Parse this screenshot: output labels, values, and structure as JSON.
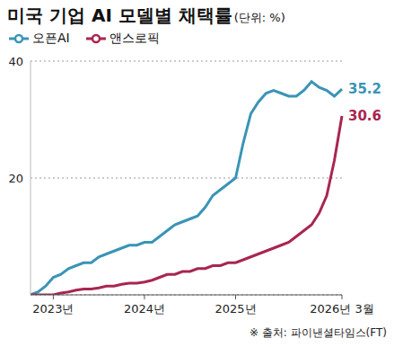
{
  "chart_data": {
    "type": "line",
    "title": "미국 기업 AI 모델별 채택률",
    "subtitle": "(단위: %)",
    "categories": [
      null,
      null,
      null,
      "2023년",
      null,
      null,
      null,
      null,
      null,
      null,
      null,
      null,
      null,
      null,
      null,
      "2024년",
      null,
      null,
      null,
      null,
      null,
      null,
      null,
      null,
      null,
      null,
      null,
      "2025년",
      null,
      null,
      null,
      null,
      null,
      null,
      null,
      null,
      null,
      null,
      null,
      null,
      null,
      "2026년 3월"
    ],
    "series": [
      {
        "name": "오픈AI",
        "color": "#3a94b5",
        "values": [
          0,
          0.5,
          1.5,
          3,
          3.5,
          4.5,
          5,
          5.5,
          5.5,
          6.5,
          7,
          7.5,
          8,
          8.5,
          8.5,
          9,
          9,
          10,
          11,
          12,
          12.5,
          13,
          13.5,
          15,
          17,
          18,
          19,
          20,
          26,
          31,
          33,
          34.5,
          35,
          34.5,
          34,
          34,
          35,
          36.5,
          35.5,
          35,
          34,
          35.2
        ]
      },
      {
        "name": "앤스로픽",
        "color": "#a8264f",
        "values": [
          0,
          0,
          0,
          0,
          0.3,
          0.5,
          0.8,
          1,
          1,
          1.2,
          1.5,
          1.5,
          1.8,
          2,
          2,
          2.2,
          2.5,
          3,
          3.5,
          3.5,
          4,
          4,
          4.5,
          4.5,
          5,
          5,
          5.5,
          5.5,
          6,
          6.5,
          7,
          7.5,
          8,
          8.5,
          9,
          10,
          11,
          12,
          14,
          17,
          23,
          30.6
        ]
      }
    ],
    "ylim": [
      0,
      40
    ],
    "yticks": [
      20,
      40
    ],
    "grid": true,
    "legend": "top-left",
    "annotations": [
      "※ 출처: 파이낸셜타임스(FT)"
    ]
  }
}
